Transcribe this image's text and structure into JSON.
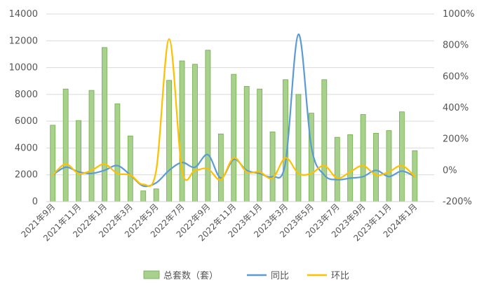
{
  "chart_data": {
    "type": "bar",
    "categories": [
      "2021年9月",
      "2021年10月",
      "2021年11月",
      "2021年12月",
      "2022年1月",
      "2022年2月",
      "2022年3月",
      "2022年4月",
      "2022年5月",
      "2022年6月",
      "2022年7月",
      "2022年8月",
      "2022年9月",
      "2022年10月",
      "2022年11月",
      "2022年12月",
      "2023年1月",
      "2023年2月",
      "2023年3月",
      "2023年4月",
      "2023年5月",
      "2023年6月",
      "2023年7月",
      "2023年8月",
      "2023年9月",
      "2023年10月",
      "2023年11月",
      "2023年12月",
      "2024年1月",
      "2024年2月"
    ],
    "x_tick_labels": [
      "2021年9月",
      "2021年11月",
      "2022年1月",
      "2022年3月",
      "2022年5月",
      "2022年7月",
      "2022年9月",
      "2022年11月",
      "2023年1月",
      "2023年3月",
      "2023年5月",
      "2023年7月",
      "2023年9月",
      "2023年11月",
      "2024年1月"
    ],
    "series": [
      {
        "name": "总套数（套）",
        "type": "bar",
        "axis": "left",
        "color": "#A9D18E",
        "values": [
          5700,
          8400,
          6050,
          8300,
          11500,
          7300,
          4900,
          800,
          950,
          9050,
          10500,
          10250,
          11300,
          5050,
          9500,
          8600,
          8400,
          5200,
          9100,
          8000,
          6600,
          9100,
          4800,
          5000,
          6500,
          5100,
          5300,
          6700,
          3800,
          null
        ]
      },
      {
        "name": "同比",
        "type": "line",
        "axis": "right",
        "color": "#5B9BD5",
        "values": [
          -30,
          20,
          -10,
          -20,
          0,
          30,
          -30,
          -100,
          -80,
          0,
          50,
          20,
          100,
          -50,
          70,
          0,
          -20,
          -40,
          50,
          870,
          150,
          -30,
          -60,
          -50,
          -40,
          0,
          -40,
          -5,
          -40,
          null
        ]
      },
      {
        "name": "环比",
        "type": "line",
        "axis": "right",
        "color": "#FFC000",
        "values": [
          -30,
          40,
          -20,
          0,
          40,
          -20,
          -30,
          -90,
          0,
          840,
          0,
          0,
          10,
          -60,
          80,
          -10,
          -10,
          -50,
          80,
          -20,
          -20,
          30,
          -50,
          -10,
          30,
          -30,
          -10,
          30,
          -40,
          null
        ]
      }
    ],
    "y_left": {
      "min": 0,
      "max": 14000,
      "ticks": [
        "0",
        "2000",
        "4000",
        "6000",
        "8000",
        "10000",
        "12000",
        "14000"
      ]
    },
    "y_right": {
      "min": -200,
      "max": 1000,
      "ticks": [
        "-200%",
        "0%",
        "200%",
        "400%",
        "600%",
        "800%",
        "1000%"
      ]
    },
    "grid": true,
    "legend": "bottom",
    "title": "",
    "xlabel": "",
    "ylabel": ""
  }
}
